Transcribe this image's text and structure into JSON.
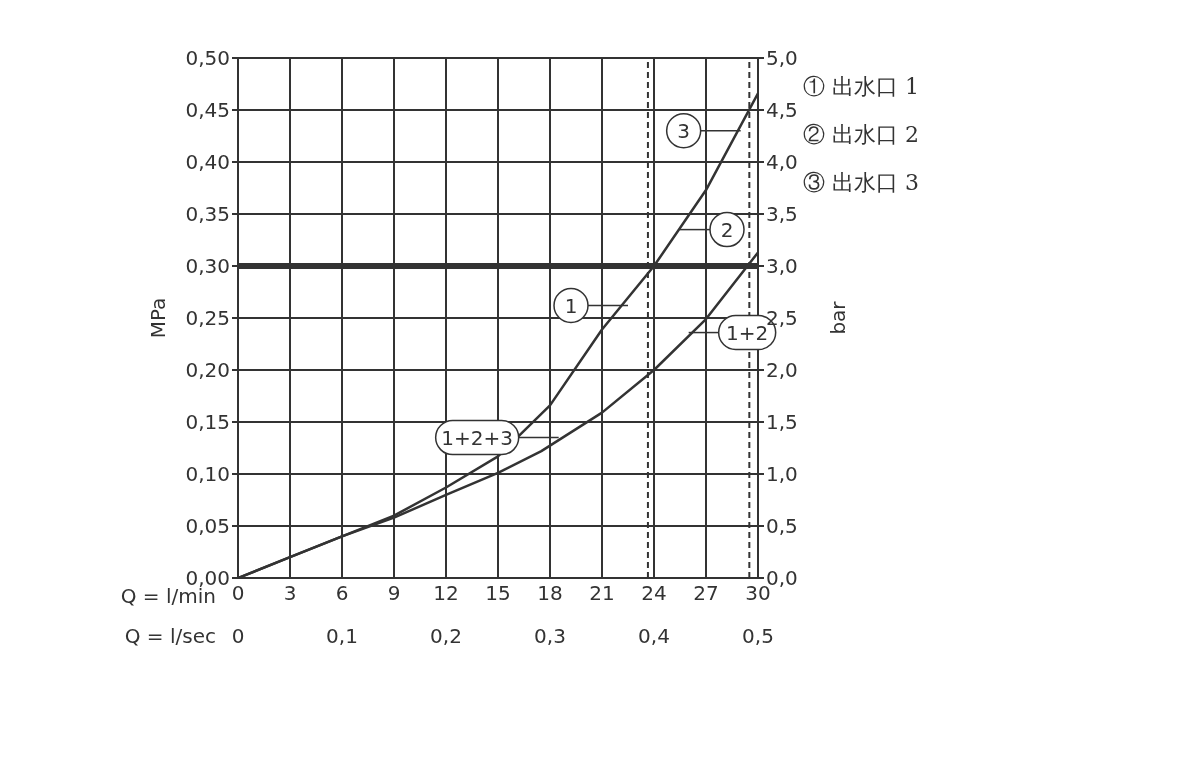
{
  "chart_data": {
    "type": "line",
    "xlabel": "Q = l/min",
    "x2label": "Q = l/sec",
    "ylabel": "MPa",
    "y2label": "bar",
    "xlim": [
      0,
      30
    ],
    "xticks": [
      0,
      3,
      6,
      9,
      12,
      15,
      18,
      21,
      24,
      27,
      30
    ],
    "x2lim": [
      0,
      0.5
    ],
    "x2ticks": [
      0,
      {
        "value": 0.1,
        "label": "0,1"
      },
      {
        "value": 0.2,
        "label": "0,2"
      },
      {
        "value": 0.3,
        "label": "0,3"
      },
      {
        "value": 0.4,
        "label": "0,4"
      },
      {
        "value": 0.5,
        "label": "0,5"
      }
    ],
    "ylim": [
      0,
      0.5
    ],
    "yticks": [
      {
        "value": 0,
        "label": "0,00"
      },
      {
        "value": 0.05,
        "label": "0,05"
      },
      {
        "value": 0.1,
        "label": "0,10"
      },
      {
        "value": 0.15,
        "label": "0,15"
      },
      {
        "value": 0.2,
        "label": "0,20"
      },
      {
        "value": 0.25,
        "label": "0,25"
      },
      {
        "value": 0.3,
        "label": "0,30"
      },
      {
        "value": 0.35,
        "label": "0,35"
      },
      {
        "value": 0.4,
        "label": "0,40"
      },
      {
        "value": 0.45,
        "label": "0,45"
      },
      {
        "value": 0.5,
        "label": "0,50"
      }
    ],
    "y2lim": [
      0,
      5
    ],
    "y2ticks": [
      {
        "value": 0,
        "label": "0,0"
      },
      {
        "value": 0.5,
        "label": "0,5"
      },
      {
        "value": 1,
        "label": "1,0"
      },
      {
        "value": 1.5,
        "label": "1,5"
      },
      {
        "value": 2,
        "label": "2,0"
      },
      {
        "value": 2.5,
        "label": "2,5"
      },
      {
        "value": 3,
        "label": "3,0"
      },
      {
        "value": 3.5,
        "label": "3,5"
      },
      {
        "value": 4,
        "label": "4,0"
      },
      {
        "value": 4.5,
        "label": "4,5"
      },
      {
        "value": 5,
        "label": "5,0"
      }
    ],
    "grid": true,
    "marker": "none",
    "line_style": "solid",
    "series": [
      {
        "color": "#333333",
        "x": [
          0,
          3,
          6,
          9,
          12,
          15,
          18,
          21,
          24,
          27,
          30
        ],
        "values": [
          0,
          0.02,
          0.04,
          0.06,
          0.087,
          0.117,
          0.166,
          0.239,
          0.3,
          0.373,
          0.466
        ]
      },
      {
        "color": "#333333",
        "x": [
          0,
          3,
          6,
          9,
          12,
          15,
          17.5,
          21,
          24,
          27,
          30
        ],
        "values": [
          0,
          0.02,
          0.04,
          0.058,
          0.08,
          0.101,
          0.122,
          0.159,
          0.2,
          0.249,
          0.313
        ]
      }
    ],
    "ref_lines": [
      {
        "axis": "y",
        "value": 0.3,
        "color": "#333333",
        "line_style": "solid"
      },
      {
        "axis": "x",
        "value": 23.65,
        "color": "#333333",
        "line_style": "dashed"
      },
      {
        "axis": "x",
        "value": 29.5,
        "color": "#333333",
        "line_style": "dashed"
      }
    ],
    "annotations": [
      {
        "text": "1",
        "x": 22.5,
        "y": 0.262
      },
      {
        "text": "2",
        "x": 25.5,
        "y": 0.335
      },
      {
        "text": "3",
        "x": 29,
        "y": 0.43
      },
      {
        "text": "1+2",
        "x": 26,
        "y": 0.236
      },
      {
        "text": "1+2+3",
        "x": 18.5,
        "y": 0.135
      },
      "① 出水口 1",
      "② 出水口 2",
      "③ 出水口 3"
    ]
  }
}
